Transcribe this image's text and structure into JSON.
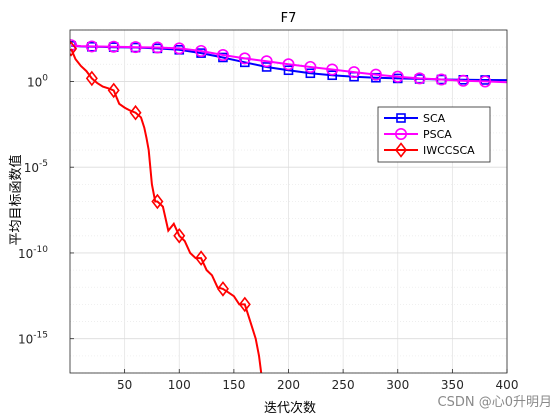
{
  "chart_data": {
    "type": "line",
    "title": "F7",
    "xlabel": "迭代次数",
    "ylabel": "平均目标函数值",
    "y_scale": "log",
    "xlim": [
      0,
      400
    ],
    "ylim": [
      1e-17,
      1000.0
    ],
    "x_ticks": [
      50,
      100,
      150,
      200,
      250,
      300,
      350,
      400
    ],
    "y_ticks": [
      {
        "base": "10",
        "exp": "0",
        "value": 1
      },
      {
        "base": "10",
        "exp": "-5",
        "value": 1e-05
      },
      {
        "base": "10",
        "exp": "-10",
        "value": 1e-10
      },
      {
        "base": "10",
        "exp": "-15",
        "value": 1e-15
      }
    ],
    "grid": true,
    "legend_position": "right",
    "series": [
      {
        "name": "SCA",
        "color": "#0000ff",
        "marker": "square",
        "x": [
          1,
          10,
          20,
          30,
          40,
          60,
          80,
          100,
          120,
          140,
          160,
          180,
          200,
          220,
          240,
          260,
          280,
          300,
          320,
          340,
          360,
          380,
          400
        ],
        "y": [
          120,
          110,
          105,
          103,
          100,
          95,
          85,
          70,
          45,
          25,
          13,
          7,
          4.5,
          3,
          2.3,
          1.9,
          1.65,
          1.5,
          1.4,
          1.3,
          1.25,
          1.22,
          1.2
        ],
        "marker_x": [
          1,
          20,
          40,
          60,
          80,
          100,
          120,
          140,
          160,
          180,
          200,
          220,
          240,
          260,
          280,
          300,
          320,
          340,
          360,
          380
        ]
      },
      {
        "name": "PSCA",
        "color": "#ff00ff",
        "marker": "circle",
        "x": [
          1,
          10,
          20,
          40,
          60,
          80,
          100,
          120,
          140,
          160,
          180,
          200,
          220,
          240,
          260,
          280,
          300,
          320,
          340,
          360,
          380,
          400
        ],
        "y": [
          130,
          115,
          110,
          105,
          100,
          95,
          85,
          60,
          35,
          22,
          15,
          10,
          7,
          5,
          3.5,
          2.5,
          1.9,
          1.5,
          1.3,
          1.1,
          1.0,
          0.9
        ],
        "marker_x": [
          1,
          20,
          40,
          60,
          80,
          100,
          120,
          140,
          160,
          180,
          200,
          220,
          240,
          260,
          280,
          300,
          320,
          340,
          360,
          380
        ]
      },
      {
        "name": "IWCCSCA",
        "color": "#ff0000",
        "marker": "diamond",
        "x": [
          1,
          5,
          10,
          15,
          20,
          25,
          30,
          35,
          40,
          45,
          50,
          55,
          60,
          65,
          68,
          70,
          72,
          75,
          78,
          80,
          85,
          90,
          95,
          100,
          105,
          110,
          115,
          120,
          125,
          130,
          135,
          140,
          145,
          150,
          155,
          160,
          165,
          170,
          173,
          175
        ],
        "y": [
          80,
          20,
          8,
          4,
          1.5,
          0.8,
          0.5,
          0.4,
          0.3,
          0.05,
          0.03,
          0.02,
          0.015,
          0.008,
          0.002,
          0.0005,
          0.0001,
          1e-06,
          1e-07,
          1e-07,
          5e-08,
          2e-09,
          5e-09,
          1e-09,
          5e-10,
          1e-10,
          5e-11,
          5e-11,
          1e-11,
          5e-12,
          1e-12,
          8e-13,
          5e-13,
          3e-13,
          1e-13,
          1e-13,
          1e-14,
          1e-15,
          1e-16,
          1e-17
        ],
        "marker_x": [
          1,
          20,
          40,
          60,
          80,
          100,
          120,
          140,
          160
        ]
      }
    ]
  },
  "watermark": "CSDN @心0升明月"
}
